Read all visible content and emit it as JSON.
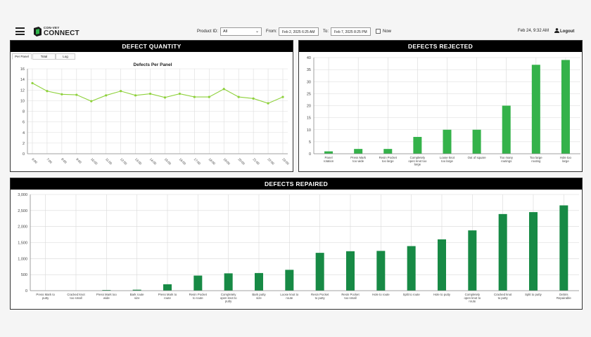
{
  "header": {
    "logo_small": "CON-VEY",
    "logo_big": "CONNECT",
    "product_label": "Product ID:",
    "product_value": "All",
    "from_label": "From:",
    "from_value": "Feb 2, 2025 6:25 AM",
    "to_label": "To:",
    "to_value": "Feb 7, 2025 8:25 PM",
    "now_label": "Now",
    "datetime": "Feb 24, 9:32 AM",
    "logout_label": "Logout"
  },
  "colors": {
    "line_green": "#8ed13b",
    "rejected_green": "#34b24a",
    "repaired_green": "#178a45"
  },
  "panels": {
    "quantity_title": "DEFECT QUANTITY",
    "rejected_title": "DEFECTS REJECTED",
    "repaired_title": "DEFECTS REPAIRED",
    "tabs": [
      "Per Panel",
      "Total",
      "Log"
    ]
  },
  "chart_data": [
    {
      "type": "line",
      "title": "Defects Per Panel",
      "x": [
        "6:00",
        "7:00",
        "8:00",
        "9:00",
        "10:00",
        "11:00",
        "12:00",
        "13:00",
        "14:00",
        "15:00",
        "16:00",
        "17:00",
        "18:00",
        "19:00",
        "20:00",
        "21:00",
        "22:00",
        "23:00"
      ],
      "values": [
        13.3,
        11.8,
        11.2,
        11.1,
        9.9,
        11.0,
        11.8,
        11.0,
        11.3,
        10.6,
        11.3,
        10.7,
        10.7,
        12.2,
        10.7,
        10.4,
        9.5,
        10.7
      ],
      "ylim": [
        0,
        16
      ],
      "yticks": [
        "0",
        "2",
        "4",
        "6",
        "8",
        "10",
        "12",
        "14",
        "16"
      ],
      "grid": true
    },
    {
      "type": "bar",
      "categories": [
        "Panel rotation",
        "Press Mark too wide",
        "Resin Pocket too large",
        "Completely open knot too large",
        "Loose knot too large",
        "Out of square",
        "Too many routings",
        "Too large routing",
        "Hole too large"
      ],
      "values": [
        1,
        2,
        2,
        7,
        10,
        10,
        20,
        37,
        39
      ],
      "ylim": [
        0,
        40
      ],
      "yticks": [
        "0",
        "5",
        "10",
        "15",
        "20",
        "25",
        "30",
        "35",
        "40"
      ],
      "grid": true
    },
    {
      "type": "bar",
      "categories": [
        "Press Mark to putty",
        "Cracked knot too small",
        "Press Mark too wide",
        "Bark route size",
        "Press Mark to route",
        "Resin Pocket to route",
        "Completely open knot to putty",
        "Bark putty size",
        "Loose knot to route",
        "Resin Pocket to putty",
        "Resin Pocket too small",
        "Hole to route",
        "Split to route",
        "Hole to putty",
        "Completely open knot to route",
        "Cracked knot to putty",
        "Split to putty",
        "Debris Repairable"
      ],
      "values": [
        0,
        0,
        20,
        30,
        200,
        470,
        540,
        550,
        650,
        1180,
        1230,
        1240,
        1390,
        1600,
        1880,
        2390,
        2450,
        2660
      ],
      "ylim": [
        0,
        3000
      ],
      "yticks": [
        "0",
        "500",
        "1,000",
        "1,500",
        "2,000",
        "2,500",
        "3,000"
      ],
      "grid": true
    }
  ]
}
